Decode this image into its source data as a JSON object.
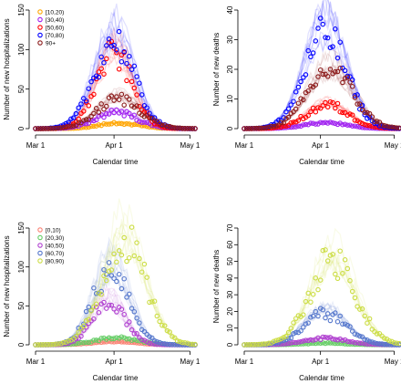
{
  "chart_data": [
    {
      "type": "scatter",
      "panel": "top-left",
      "xlabel": "Calendar time",
      "ylabel": "Number of new hospitalizations",
      "x_tick_labels": [
        "Mar 1",
        "Apr 1",
        "May 1"
      ],
      "x_tick_days": [
        0,
        31,
        61
      ],
      "xlim": [
        0,
        63
      ],
      "ylim": [
        0,
        150
      ],
      "y_ticks": [
        0,
        50,
        100,
        150
      ],
      "legend_position": "top-left",
      "grid": false,
      "series": [
        {
          "name": "[10,20)",
          "color": "#FFA500",
          "peak_day": 33,
          "peak": 7,
          "width": 11
        },
        {
          "name": "[30,40)",
          "color": "#A020F0",
          "peak_day": 32,
          "peak": 22,
          "width": 11
        },
        {
          "name": "[50,60)",
          "color": "#FF0000",
          "peak_day": 31,
          "peak": 95,
          "width": 10
        },
        {
          "name": "[70,80)",
          "color": "#0000FF",
          "peak_day": 31,
          "peak": 112,
          "width": 11
        },
        {
          "name": "90+",
          "color": "#8B1A1A",
          "peak_day": 33,
          "peak": 38,
          "width": 12
        }
      ]
    },
    {
      "type": "scatter",
      "panel": "top-right",
      "xlabel": "Calendar time",
      "ylabel": "Number of new deaths",
      "x_tick_labels": [
        "Mar 1",
        "Apr 1",
        "May 1"
      ],
      "x_tick_days": [
        0,
        31,
        61
      ],
      "xlim": [
        0,
        63
      ],
      "ylim": [
        0,
        40
      ],
      "y_ticks": [
        0,
        10,
        20,
        30,
        40
      ],
      "grid": false,
      "series": [
        {
          "color": "#A020F0",
          "peak_day": 33,
          "peak": 2,
          "width": 12
        },
        {
          "color": "#FF0000",
          "peak_day": 34,
          "peak": 8,
          "width": 12
        },
        {
          "color": "#0000FF",
          "peak_day": 33,
          "peak": 32,
          "width": 12
        },
        {
          "color": "#8B1A1A",
          "peak_day": 35,
          "peak": 20,
          "width": 13
        }
      ]
    },
    {
      "type": "scatter",
      "panel": "bottom-left",
      "xlabel": "Calendar time",
      "ylabel": "Number of new hospitalizations",
      "x_tick_labels": [
        "Mar 1",
        "Apr 1",
        "May 1"
      ],
      "x_tick_days": [
        0,
        31,
        61
      ],
      "xlim": [
        0,
        63
      ],
      "ylim": [
        0,
        150
      ],
      "y_ticks": [
        0,
        50,
        100,
        150
      ],
      "legend_position": "top-left",
      "grid": false,
      "series": [
        {
          "name": "[0,10)",
          "color": "#FA8072",
          "peak_day": 31,
          "peak": 4,
          "width": 12
        },
        {
          "name": "[20,30)",
          "color": "#66CD66",
          "peak_day": 32,
          "peak": 9,
          "width": 12
        },
        {
          "name": "[40,50)",
          "color": "#B040D0",
          "peak_day": 29,
          "peak": 55,
          "width": 9
        },
        {
          "name": "[60,70)",
          "color": "#5577CC",
          "peak_day": 30,
          "peak": 100,
          "width": 10
        },
        {
          "name": "[80,90)",
          "color": "#CCDD44",
          "peak_day": 35,
          "peak": 135,
          "width": 12
        }
      ]
    },
    {
      "type": "scatter",
      "panel": "bottom-right",
      "xlabel": "Calendar time",
      "ylabel": "Number of new deaths",
      "x_tick_labels": [
        "Mar 1",
        "Apr 1",
        "May 1"
      ],
      "x_tick_days": [
        0,
        31,
        61
      ],
      "xlim": [
        0,
        63
      ],
      "ylim": [
        0,
        70
      ],
      "y_ticks": [
        0,
        10,
        20,
        30,
        40,
        50,
        60,
        70
      ],
      "grid": false,
      "series": [
        {
          "color": "#66CD66",
          "peak_day": 33,
          "peak": 1,
          "width": 12
        },
        {
          "color": "#B040D0",
          "peak_day": 33,
          "peak": 4,
          "width": 12
        },
        {
          "color": "#5577CC",
          "peak_day": 33,
          "peak": 19,
          "width": 12
        },
        {
          "color": "#CCDD44",
          "peak_day": 36,
          "peak": 52,
          "width": 13
        }
      ]
    }
  ]
}
